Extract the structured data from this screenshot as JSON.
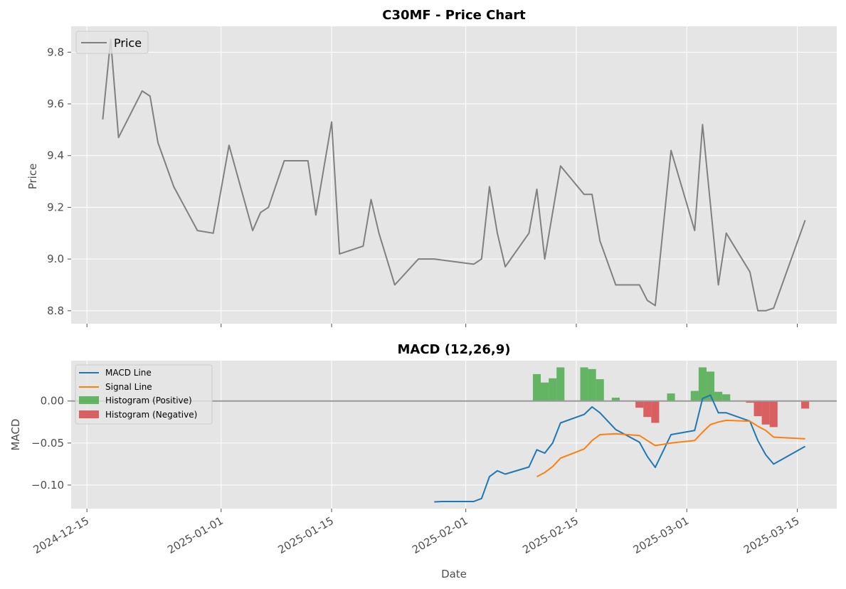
{
  "chart_data": [
    {
      "type": "line",
      "title": "C30MF - Price Chart",
      "xlabel": "",
      "ylabel": "Price",
      "ylim": [
        8.75,
        9.9
      ],
      "yticks": [
        8.8,
        9.0,
        9.2,
        9.4,
        9.6,
        9.8
      ],
      "ytick_labels": [
        "8.8",
        "9.0",
        "9.2",
        "9.4",
        "9.6",
        "9.8"
      ],
      "xlim": [
        "2024-12-13",
        "2025-03-20"
      ],
      "grid": true,
      "legend": {
        "position": "top-left",
        "entries": [
          "Price"
        ]
      },
      "series": [
        {
          "name": "Price",
          "color": "#808080",
          "points": [
            [
              "2024-12-17",
              9.54
            ],
            [
              "2024-12-18",
              9.85
            ],
            [
              "2024-12-19",
              9.47
            ],
            [
              "2024-12-22",
              9.65
            ],
            [
              "2024-12-23",
              9.63
            ],
            [
              "2024-12-24",
              9.45
            ],
            [
              "2024-12-26",
              9.28
            ],
            [
              "2024-12-29",
              9.11
            ],
            [
              "2024-12-31",
              9.1
            ],
            [
              "2025-01-02",
              9.44
            ],
            [
              "2025-01-05",
              9.11
            ],
            [
              "2025-01-06",
              9.18
            ],
            [
              "2025-01-07",
              9.2
            ],
            [
              "2025-01-09",
              9.38
            ],
            [
              "2025-01-12",
              9.38
            ],
            [
              "2025-01-13",
              9.17
            ],
            [
              "2025-01-15",
              9.53
            ],
            [
              "2025-01-16",
              9.02
            ],
            [
              "2025-01-19",
              9.05
            ],
            [
              "2025-01-20",
              9.23
            ],
            [
              "2025-01-21",
              9.1
            ],
            [
              "2025-01-23",
              8.9
            ],
            [
              "2025-01-26",
              9.0
            ],
            [
              "2025-01-28",
              9.0
            ],
            [
              "2025-02-02",
              8.98
            ],
            [
              "2025-02-03",
              9.0
            ],
            [
              "2025-02-04",
              9.28
            ],
            [
              "2025-02-05",
              9.1
            ],
            [
              "2025-02-06",
              8.97
            ],
            [
              "2025-02-09",
              9.1
            ],
            [
              "2025-02-10",
              9.27
            ],
            [
              "2025-02-11",
              9.0
            ],
            [
              "2025-02-13",
              9.36
            ],
            [
              "2025-02-16",
              9.25
            ],
            [
              "2025-02-17",
              9.25
            ],
            [
              "2025-02-18",
              9.07
            ],
            [
              "2025-02-20",
              8.9
            ],
            [
              "2025-02-23",
              8.9
            ],
            [
              "2025-02-24",
              8.84
            ],
            [
              "2025-02-25",
              8.82
            ],
            [
              "2025-02-27",
              9.42
            ],
            [
              "2025-03-02",
              9.11
            ],
            [
              "2025-03-03",
              9.52
            ],
            [
              "2025-03-05",
              8.9
            ],
            [
              "2025-03-06",
              9.1
            ],
            [
              "2025-03-09",
              8.95
            ],
            [
              "2025-03-10",
              8.8
            ],
            [
              "2025-03-11",
              8.8
            ],
            [
              "2025-03-12",
              8.81
            ],
            [
              "2025-03-16",
              9.15
            ]
          ]
        }
      ]
    },
    {
      "type": "line",
      "title": "MACD (12,26,9)",
      "xlabel": "Date",
      "ylabel": "MACD",
      "ylim": [
        -0.128,
        0.048
      ],
      "yticks": [
        -0.1,
        -0.05,
        0.0
      ],
      "ytick_labels": [
        "−0.10",
        "−0.05",
        "0.00"
      ],
      "xlim": [
        "2024-12-13",
        "2025-03-20"
      ],
      "xticks": [
        "2024-12-15",
        "2025-01-01",
        "2025-01-15",
        "2025-02-01",
        "2025-02-15",
        "2025-03-01",
        "2025-03-15"
      ],
      "xtick_labels": [
        "2024-12-15",
        "2025-01-01",
        "2025-01-15",
        "2025-02-01",
        "2025-02-15",
        "2025-03-01",
        "2025-03-15"
      ],
      "grid": true,
      "zero_line": true,
      "legend": {
        "position": "top-left",
        "entries": [
          "MACD Line",
          "Signal Line",
          "Histogram (Positive)",
          "Histogram (Negative)"
        ]
      },
      "series": [
        {
          "name": "MACD Line",
          "color": "#1f77b4",
          "points": [
            [
              "2025-01-28",
              -0.12
            ],
            [
              "2025-01-29",
              -0.1195
            ],
            [
              "2025-02-02",
              -0.1195
            ],
            [
              "2025-02-03",
              -0.116
            ],
            [
              "2025-02-04",
              -0.09
            ],
            [
              "2025-02-05",
              -0.083
            ],
            [
              "2025-02-06",
              -0.087
            ],
            [
              "2025-02-09",
              -0.0785
            ],
            [
              "2025-02-10",
              -0.058
            ],
            [
              "2025-02-11",
              -0.062
            ],
            [
              "2025-02-12",
              -0.05
            ],
            [
              "2025-02-13",
              -0.026
            ],
            [
              "2025-02-16",
              -0.016
            ],
            [
              "2025-02-17",
              -0.007
            ],
            [
              "2025-02-18",
              -0.014
            ],
            [
              "2025-02-20",
              -0.034
            ],
            [
              "2025-02-23",
              -0.049
            ],
            [
              "2025-02-24",
              -0.066
            ],
            [
              "2025-02-25",
              -0.079
            ],
            [
              "2025-02-27",
              -0.04
            ],
            [
              "2025-03-02",
              -0.035
            ],
            [
              "2025-03-03",
              0.003
            ],
            [
              "2025-03-04",
              0.007
            ],
            [
              "2025-03-05",
              -0.014
            ],
            [
              "2025-03-06",
              -0.014
            ],
            [
              "2025-03-09",
              -0.024
            ],
            [
              "2025-03-10",
              -0.047
            ],
            [
              "2025-03-11",
              -0.064
            ],
            [
              "2025-03-12",
              -0.075
            ],
            [
              "2025-03-16",
              -0.054
            ]
          ]
        },
        {
          "name": "Signal Line",
          "color": "#ff7f0e",
          "points": [
            [
              "2025-02-10",
              -0.09
            ],
            [
              "2025-02-11",
              -0.085
            ],
            [
              "2025-02-12",
              -0.078
            ],
            [
              "2025-02-13",
              -0.068
            ],
            [
              "2025-02-16",
              -0.057
            ],
            [
              "2025-02-17",
              -0.047
            ],
            [
              "2025-02-18",
              -0.04
            ],
            [
              "2025-02-20",
              -0.039
            ],
            [
              "2025-02-23",
              -0.041
            ],
            [
              "2025-02-24",
              -0.047
            ],
            [
              "2025-02-25",
              -0.053
            ],
            [
              "2025-02-27",
              -0.05
            ],
            [
              "2025-03-02",
              -0.047
            ],
            [
              "2025-03-03",
              -0.037
            ],
            [
              "2025-03-04",
              -0.028
            ],
            [
              "2025-03-05",
              -0.025
            ],
            [
              "2025-03-06",
              -0.023
            ],
            [
              "2025-03-09",
              -0.024
            ],
            [
              "2025-03-10",
              -0.03
            ],
            [
              "2025-03-11",
              -0.035
            ],
            [
              "2025-03-12",
              -0.043
            ],
            [
              "2025-03-16",
              -0.045
            ]
          ]
        },
        {
          "name": "Histogram (Positive)",
          "color": "#2ca02c",
          "kind": "bar",
          "points": [
            [
              "2025-02-10",
              0.032
            ],
            [
              "2025-02-11",
              0.022
            ],
            [
              "2025-02-12",
              0.027
            ],
            [
              "2025-02-13",
              0.04
            ],
            [
              "2025-02-16",
              0.04
            ],
            [
              "2025-02-17",
              0.038
            ],
            [
              "2025-02-18",
              0.026
            ],
            [
              "2025-02-20",
              0.004
            ],
            [
              "2025-02-27",
              0.009
            ],
            [
              "2025-03-02",
              0.012
            ],
            [
              "2025-03-03",
              0.04
            ],
            [
              "2025-03-04",
              0.035
            ],
            [
              "2025-03-05",
              0.011
            ],
            [
              "2025-03-06",
              0.008
            ]
          ]
        },
        {
          "name": "Histogram (Negative)",
          "color": "#d62728",
          "kind": "bar",
          "points": [
            [
              "2025-02-23",
              -0.008
            ],
            [
              "2025-02-24",
              -0.019
            ],
            [
              "2025-02-25",
              -0.026
            ],
            [
              "2025-03-09",
              -0.002
            ],
            [
              "2025-03-10",
              -0.018
            ],
            [
              "2025-03-11",
              -0.028
            ],
            [
              "2025-03-12",
              -0.031
            ],
            [
              "2025-03-16",
              -0.009
            ]
          ]
        }
      ]
    }
  ]
}
